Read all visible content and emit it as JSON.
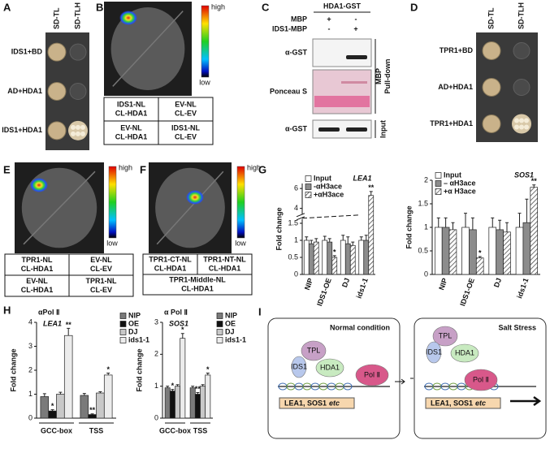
{
  "panels": {
    "A": {
      "label": "A",
      "columns": [
        "SD-TL",
        "SD-TLH"
      ],
      "rows": [
        "IDS1+BD",
        "AD+HDA1",
        "IDS1+HDA1"
      ]
    },
    "B": {
      "label": "B",
      "scale": [
        "high",
        "low"
      ],
      "cells": [
        [
          "IDS1-NL",
          "CL-HDA1"
        ],
        [
          "EV-NL",
          "CL-EV"
        ],
        [
          "EV-NL",
          "CL-HDA1"
        ],
        [
          "IDS1-NL",
          "CL-EV"
        ]
      ]
    },
    "C": {
      "label": "C",
      "protein": "HDA1-GST",
      "rows": [
        {
          "name": "MBP",
          "lanes": [
            "+",
            "-"
          ]
        },
        {
          "name": "IDS1-MBP",
          "lanes": [
            "-",
            "+"
          ]
        }
      ],
      "blots": [
        "α-GST",
        "Ponceau S",
        "α-GST"
      ],
      "groups": [
        [
          "MBP",
          "Pull-down"
        ],
        [
          "Input"
        ]
      ]
    },
    "D": {
      "label": "D",
      "columns": [
        "SD-TL",
        "SD-TLH"
      ],
      "rows": [
        "TPR1+BD",
        "AD+HDA1",
        "TPR1+HDA1"
      ]
    },
    "E": {
      "label": "E",
      "scale": [
        "high",
        "low"
      ],
      "cells": [
        [
          "TPR1-NL",
          "CL-HDA1"
        ],
        [
          "EV-NL",
          "CL-EV"
        ],
        [
          "EV-NL",
          "CL-HDA1"
        ],
        [
          "TPR1-NL",
          "CL-EV"
        ]
      ]
    },
    "F": {
      "label": "F",
      "scale": [
        "high",
        "low"
      ],
      "cells": [
        [
          "TPR1-CT-NL",
          "CL-HDA1"
        ],
        [
          "TPR1-NT-NL",
          "CL-HDA1"
        ],
        [
          "TPR1-Middle-NL",
          "CL-HDA1"
        ]
      ]
    },
    "G": {
      "label": "G"
    },
    "H": {
      "label": "H"
    },
    "I": {
      "label": "I",
      "conditions": [
        {
          "title": "Normal condition",
          "proteins": [
            "TPL",
            "IDS1",
            "HDA1",
            "Pol Ⅱ"
          ],
          "genes": "LEA1, SOS1",
          "etc": "etc"
        },
        {
          "title": "Salt Stress",
          "proteins": [
            "TPL",
            "IDS1",
            "HDA1",
            "Pol Ⅱ"
          ],
          "genes": "LEA1, SOS1",
          "etc": "etc"
        }
      ]
    }
  },
  "chart_data": [
    {
      "type": "bar",
      "title": "LEA1",
      "ylabel": "Fold change",
      "categories": [
        "NIP",
        "IDS1-OE",
        "DJ",
        "ids1-1"
      ],
      "series": [
        {
          "name": "Input",
          "color": "#ffffff",
          "values": [
            1,
            1,
            1,
            1
          ],
          "errors": [
            0.1,
            0.12,
            0.15,
            0.1
          ]
        },
        {
          "name": "-αH3ace",
          "color": "#8c8c8c",
          "values": [
            0.9,
            0.95,
            0.9,
            1.0
          ],
          "errors": [
            0.1,
            0.1,
            0.2,
            0.15
          ]
        },
        {
          "name": "+αH3ace",
          "color": "#ffffff",
          "hatch": true,
          "values": [
            0.95,
            0.5,
            0.85,
            5.3
          ],
          "errors": [
            0.1,
            0.05,
            0.1,
            0.4
          ],
          "significance": [
            null,
            "*",
            null,
            "**"
          ]
        }
      ],
      "ylim": [
        0,
        6.5
      ],
      "ybreak": [
        1.6,
        3.5
      ],
      "yticks": [
        0,
        0.5,
        1,
        1.5,
        4,
        6
      ],
      "legend": "top-left"
    },
    {
      "type": "bar",
      "title": "SOS1",
      "ylabel": "Fold change",
      "categories": [
        "NIP",
        "IDS1-OE",
        "DJ",
        "ids1-1"
      ],
      "series": [
        {
          "name": "Input",
          "color": "#ffffff",
          "values": [
            1,
            1,
            1,
            1
          ],
          "errors": [
            0.2,
            0.3,
            0.2,
            0.3
          ]
        },
        {
          "name": "– αH3ace",
          "color": "#8c8c8c",
          "values": [
            1.0,
            0.95,
            0.95,
            1.1
          ],
          "errors": [
            0.2,
            0.25,
            0.2,
            0.5
          ]
        },
        {
          "name": "+α H3ace",
          "color": "#ffffff",
          "hatch": true,
          "values": [
            0.95,
            0.35,
            0.9,
            1.85
          ],
          "errors": [
            0.15,
            0.03,
            0.2,
            0.05
          ],
          "significance": [
            null,
            "*",
            null,
            "**"
          ]
        }
      ],
      "ylim": [
        0,
        2
      ],
      "yticks": [
        0,
        0.5,
        1,
        1.5,
        2
      ],
      "legend": "top-left"
    },
    {
      "type": "bar",
      "title": "αPol Ⅱ",
      "subtitle": "LEA1",
      "ylabel": "Fold change",
      "categories": [
        "GCC-box",
        "TSS"
      ],
      "series": [
        {
          "name": "NIP",
          "color": "#7a7a7a",
          "values": [
            0.9,
            0.95
          ],
          "errors": [
            0.12,
            0.08
          ]
        },
        {
          "name": "OE",
          "color": "#111111",
          "values": [
            0.3,
            0.15
          ],
          "errors": [
            0.05,
            0.03
          ],
          "significance": [
            "*",
            "**"
          ]
        },
        {
          "name": "DJ",
          "color": "#c8c8c8",
          "values": [
            1.0,
            1.05
          ],
          "errors": [
            0.08,
            0.05
          ]
        },
        {
          "name": "ids1-1",
          "color": "#ececec",
          "values": [
            3.45,
            1.8
          ],
          "errors": [
            0.3,
            0.08
          ],
          "significance": [
            "**",
            "*"
          ]
        }
      ],
      "ylim": [
        0,
        4
      ],
      "yticks": [
        0,
        1,
        2,
        3,
        4
      ],
      "legend": "right"
    },
    {
      "type": "bar",
      "title": "α Pol Ⅱ",
      "subtitle": "SOS1",
      "ylabel": "Fold change",
      "categories": [
        "GCC-box",
        "TSS"
      ],
      "series": [
        {
          "name": "NIP",
          "color": "#7a7a7a",
          "values": [
            0.95,
            0.95
          ],
          "errors": [
            0.05,
            0.05
          ]
        },
        {
          "name": "OE",
          "color": "#111111",
          "values": [
            0.85,
            0.75
          ],
          "errors": [
            0.05,
            0.05
          ],
          "significance": [
            "*",
            "**"
          ]
        },
        {
          "name": "DJ",
          "color": "#c8c8c8",
          "values": [
            1.0,
            1.0
          ],
          "errors": [
            0.05,
            0.05
          ]
        },
        {
          "name": "ids1-1",
          "color": "#ececec",
          "values": [
            2.5,
            1.35
          ],
          "errors": [
            0.15,
            0.06
          ],
          "significance": [
            "*",
            "*"
          ]
        }
      ],
      "ylim": [
        0,
        3
      ],
      "yticks": [
        0,
        1,
        2,
        3
      ],
      "legend": "right"
    }
  ]
}
